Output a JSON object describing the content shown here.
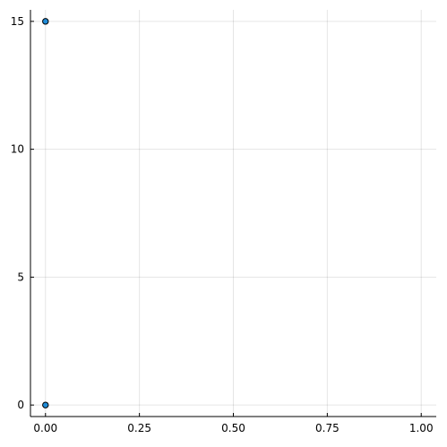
{
  "chart_data": {
    "type": "scatter",
    "xlim": [
      -0.04,
      1.04
    ],
    "ylim": [
      -0.45,
      15.45
    ],
    "x_ticks": [
      0.0,
      0.25,
      0.5,
      0.75,
      1.0
    ],
    "x_tick_labels": [
      "0.00",
      "0.25",
      "0.50",
      "0.75",
      "1.00"
    ],
    "y_ticks": [
      0,
      5,
      10,
      15
    ],
    "y_tick_labels": [
      "0",
      "5",
      "10",
      "15"
    ],
    "grid": true,
    "legend": false,
    "series": [
      {
        "color": "#1f8bd7",
        "points": [
          {
            "x": 0.0,
            "y": 15
          },
          {
            "x": 0.0,
            "y": 0
          }
        ]
      }
    ]
  }
}
